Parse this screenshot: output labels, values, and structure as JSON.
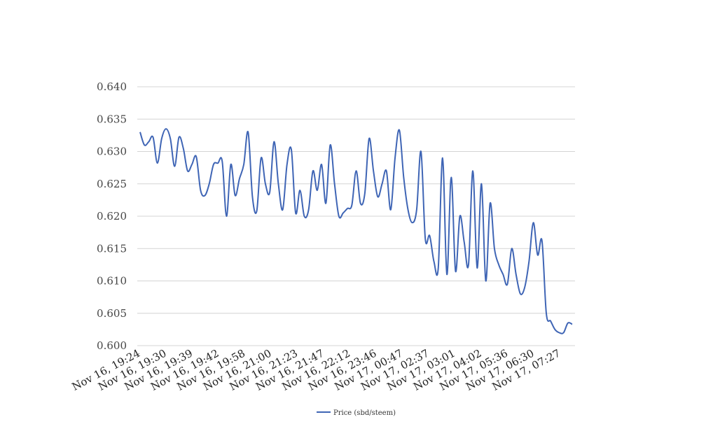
{
  "chart_data": {
    "type": "line",
    "title": "",
    "xlabel": "",
    "ylabel": "",
    "ylim": [
      0.6,
      0.64
    ],
    "yticks": [
      "0.600",
      "0.605",
      "0.610",
      "0.615",
      "0.620",
      "0.625",
      "0.630",
      "0.635",
      "0.640"
    ],
    "grid": true,
    "legend_position": "bottom",
    "x_tick_labels": [
      "Nov 16, 19:24",
      "Nov 16, 19:30",
      "Nov 16, 19:39",
      "Nov 16, 19:42",
      "Nov 16, 19:58",
      "Nov 16, 21:00",
      "Nov 16, 21:23",
      "Nov 16, 21:47",
      "Nov 16, 22:12",
      "Nov 16, 23:46",
      "Nov 17, 00:47",
      "Nov 17, 02:37",
      "Nov 17, 03:01",
      "Nov 17, 04:02",
      "Nov 17, 05:36",
      "Nov 17, 06:30",
      "Nov 17, 07:27"
    ],
    "series": [
      {
        "name": "Price (sbd/steem)",
        "color": "#3f65b5",
        "values": [
          0.633,
          0.631,
          0.6315,
          0.6322,
          0.6282,
          0.632,
          0.6335,
          0.632,
          0.6277,
          0.6322,
          0.6305,
          0.627,
          0.628,
          0.6292,
          0.624,
          0.6232,
          0.625,
          0.628,
          0.6282,
          0.6285,
          0.62,
          0.628,
          0.6232,
          0.6258,
          0.628,
          0.633,
          0.623,
          0.6208,
          0.629,
          0.625,
          0.6237,
          0.6315,
          0.625,
          0.621,
          0.628,
          0.6303,
          0.6205,
          0.624,
          0.62,
          0.621,
          0.627,
          0.624,
          0.628,
          0.622,
          0.631,
          0.625,
          0.62,
          0.6205,
          0.6212,
          0.6217,
          0.627,
          0.622,
          0.6235,
          0.632,
          0.627,
          0.623,
          0.625,
          0.627,
          0.621,
          0.629,
          0.6333,
          0.626,
          0.621,
          0.619,
          0.621,
          0.63,
          0.6165,
          0.617,
          0.613,
          0.612,
          0.629,
          0.611,
          0.626,
          0.6115,
          0.62,
          0.616,
          0.6125,
          0.627,
          0.612,
          0.625,
          0.61,
          0.622,
          0.615,
          0.6125,
          0.611,
          0.6095,
          0.615,
          0.611,
          0.608,
          0.609,
          0.613,
          0.619,
          0.614,
          0.6162,
          0.605,
          0.6038,
          0.6025,
          0.602,
          0.602,
          0.6035,
          0.6033
        ]
      }
    ]
  }
}
